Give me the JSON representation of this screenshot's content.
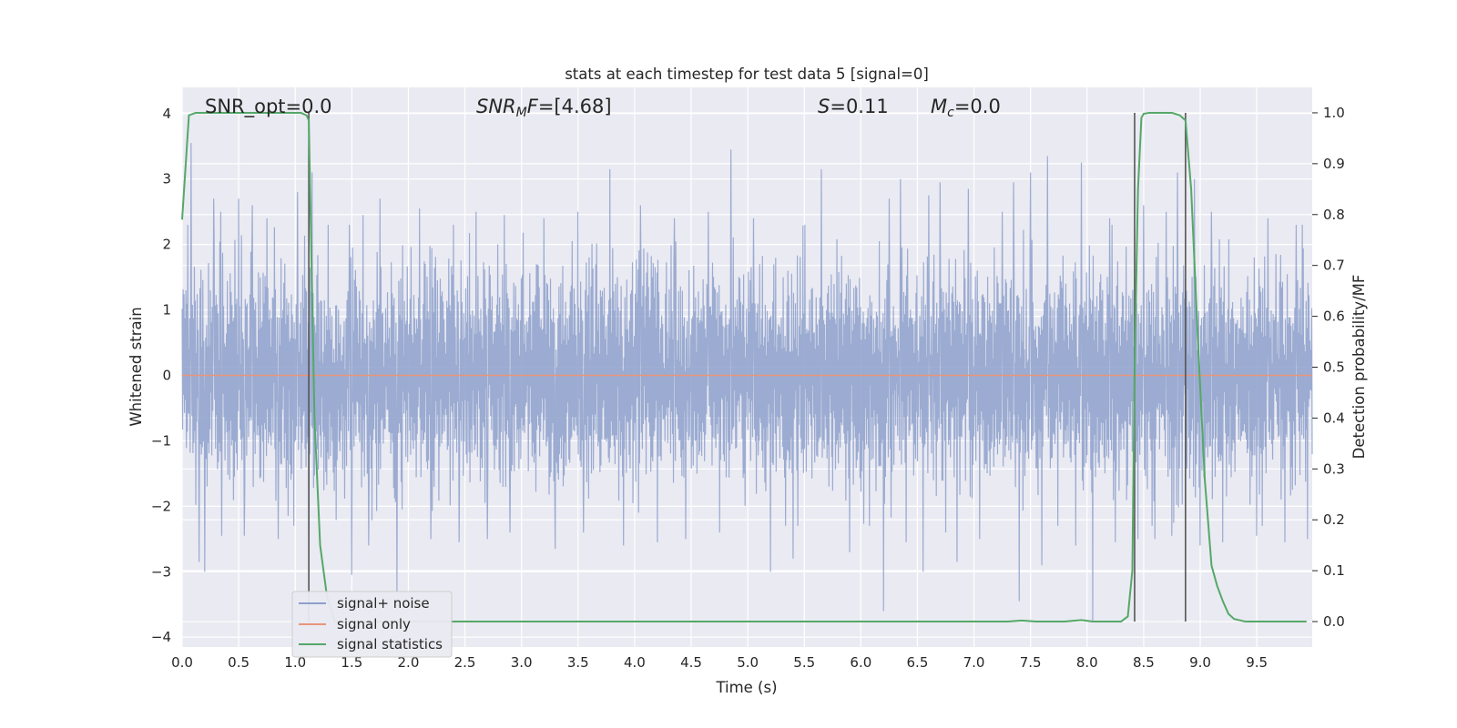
{
  "chart_data": {
    "type": "line",
    "title": "stats at each timestep for test data 5 [signal=0]",
    "xlabel": "Time (s)",
    "ylabel": "Whitened strain",
    "ylabel_right": "Detection probability/MF",
    "xlim": [
      0,
      9.99
    ],
    "ylim": [
      -4.15,
      4.4
    ],
    "ylim_right": [
      -0.05,
      1.05
    ],
    "x_ticks": [
      "0.0",
      "0.5",
      "1.0",
      "1.5",
      "2.0",
      "2.5",
      "3.0",
      "3.5",
      "4.0",
      "4.5",
      "5.0",
      "5.5",
      "6.0",
      "6.5",
      "7.0",
      "7.5",
      "8.0",
      "8.5",
      "9.0",
      "9.5"
    ],
    "y_ticks": [
      "4",
      "3",
      "2",
      "1",
      "0",
      "−1",
      "−2",
      "−3",
      "−4"
    ],
    "y_ticks_right": [
      "1.0",
      "0.9",
      "0.8",
      "0.7",
      "0.6",
      "0.5",
      "0.4",
      "0.3",
      "0.2",
      "0.1",
      "0.0"
    ],
    "grid": true,
    "legend": {
      "placement": "lower-left",
      "entries": [
        {
          "label": "signal+ noise",
          "color": "#8da0cb"
        },
        {
          "label": "signal only",
          "color": "#e8957a"
        },
        {
          "label": "signal statistics",
          "color": "#55a868"
        }
      ]
    },
    "annotations": [
      {
        "text": "SNR_opt=0.0",
        "x": 0.2
      },
      {
        "text_italic": "SNR",
        "sub": "M",
        "text_italic2": "F",
        "text": "=[4.68]",
        "x": 2.6
      },
      {
        "text_italic": "S",
        "text": "=0.11",
        "x": 5.6
      },
      {
        "text_italic": "M",
        "sub": "c",
        "text": "=0.0",
        "x": 6.6
      }
    ],
    "series": [
      {
        "name": "signal+ noise",
        "color": "#8da0cb",
        "envelope_upper_typical": 1.8,
        "envelope_lower_typical": -1.9,
        "peaks": [
          [
            0.05,
            2.3
          ],
          [
            0.08,
            3.55
          ],
          [
            0.28,
            2.7
          ],
          [
            0.34,
            2.5
          ],
          [
            0.5,
            2.7
          ],
          [
            0.55,
            2.5
          ],
          [
            0.62,
            2.6
          ],
          [
            0.75,
            2.4
          ],
          [
            0.85,
            2.75
          ],
          [
            1.02,
            2.8
          ],
          [
            1.15,
            3.1
          ],
          [
            1.48,
            2.3
          ],
          [
            1.6,
            2.45
          ],
          [
            1.75,
            2.7
          ],
          [
            2.1,
            2.55
          ],
          [
            2.4,
            2.3
          ],
          [
            2.6,
            2.5
          ],
          [
            2.85,
            2.45
          ],
          [
            3.2,
            2.4
          ],
          [
            3.5,
            2.5
          ],
          [
            3.55,
            2.75
          ],
          [
            3.78,
            3.15
          ],
          [
            4.05,
            2.6
          ],
          [
            4.35,
            2.4
          ],
          [
            4.65,
            2.5
          ],
          [
            4.75,
            3.6
          ],
          [
            4.85,
            3.45
          ],
          [
            5.05,
            2.4
          ],
          [
            5.4,
            2.45
          ],
          [
            5.65,
            3.15
          ],
          [
            5.9,
            2.4
          ],
          [
            6.25,
            2.7
          ],
          [
            6.35,
            3.0
          ],
          [
            6.6,
            2.75
          ],
          [
            6.7,
            2.95
          ],
          [
            6.95,
            2.85
          ],
          [
            7.25,
            2.5
          ],
          [
            7.35,
            2.95
          ],
          [
            7.5,
            3.1
          ],
          [
            7.65,
            3.35
          ],
          [
            7.95,
            3.25
          ],
          [
            8.2,
            2.4
          ],
          [
            8.5,
            2.6
          ],
          [
            8.7,
            2.5
          ],
          [
            8.8,
            3.1
          ],
          [
            8.95,
            3.0
          ],
          [
            9.1,
            2.5
          ],
          [
            9.2,
            2.5
          ],
          [
            9.5,
            2.5
          ],
          [
            9.6,
            2.4
          ],
          [
            9.75,
            2.5
          ],
          [
            9.85,
            2.3
          ]
        ],
        "troughs": [
          [
            0.15,
            -2.85
          ],
          [
            0.2,
            -2.4
          ],
          [
            0.2,
            -3.0
          ],
          [
            0.35,
            -2.45
          ],
          [
            0.55,
            -2.45
          ],
          [
            0.85,
            -2.5
          ],
          [
            1.12,
            -2.5
          ],
          [
            1.5,
            -3.05
          ],
          [
            1.65,
            -2.6
          ],
          [
            1.9,
            -3.3
          ],
          [
            2.2,
            -2.5
          ],
          [
            2.45,
            -2.55
          ],
          [
            2.7,
            -2.5
          ],
          [
            2.9,
            -2.4
          ],
          [
            3.3,
            -2.65
          ],
          [
            3.55,
            -2.4
          ],
          [
            3.9,
            -2.6
          ],
          [
            4.2,
            -2.55
          ],
          [
            4.45,
            -2.5
          ],
          [
            4.75,
            -2.4
          ],
          [
            5.2,
            -3.0
          ],
          [
            5.4,
            -2.8
          ],
          [
            5.9,
            -2.7
          ],
          [
            6.2,
            -3.6
          ],
          [
            6.4,
            -2.55
          ],
          [
            6.55,
            -3.0
          ],
          [
            6.75,
            -2.4
          ],
          [
            6.85,
            -2.85
          ],
          [
            7.05,
            -2.5
          ],
          [
            7.4,
            -3.45
          ],
          [
            7.6,
            -2.9
          ],
          [
            7.9,
            -2.6
          ],
          [
            8.05,
            -3.75
          ],
          [
            8.25,
            -2.55
          ],
          [
            8.45,
            -2.5
          ],
          [
            8.6,
            -2.5
          ],
          [
            8.75,
            -2.45
          ],
          [
            9.0,
            -2.6
          ],
          [
            9.2,
            -2.55
          ],
          [
            9.5,
            -2.45
          ],
          [
            9.75,
            -2.55
          ],
          [
            9.95,
            -2.5
          ]
        ]
      },
      {
        "name": "signal only",
        "color": "#e8957a",
        "x": [
          0,
          9.99
        ],
        "y": [
          0,
          0
        ]
      },
      {
        "name": "signal statistics",
        "color": "#55a868",
        "axis": "right",
        "x": [
          0,
          0.06,
          0.12,
          0.2,
          0.5,
          1.0,
          1.05,
          1.1,
          1.12,
          1.14,
          1.17,
          1.22,
          1.28,
          1.35,
          2.0,
          3.0,
          4.0,
          5.0,
          6.0,
          7.0,
          7.3,
          7.42,
          7.55,
          7.8,
          7.95,
          8.05,
          8.15,
          8.3,
          8.36,
          8.4,
          8.42,
          8.45,
          8.48,
          8.5,
          8.55,
          8.6,
          8.75,
          8.82,
          8.87,
          8.92,
          8.98,
          9.04,
          9.1,
          9.15,
          9.2,
          9.25,
          9.3,
          9.4,
          9.6,
          9.94
        ],
        "y": [
          0.79,
          0.995,
          1.0,
          1.0,
          1.0,
          1.0,
          1.0,
          0.995,
          0.985,
          0.75,
          0.4,
          0.15,
          0.05,
          0.0,
          0.0,
          0.0,
          0.0,
          0.0,
          0.0,
          0.0,
          0.0,
          0.002,
          0.0,
          0.0,
          0.003,
          0.0,
          0.0,
          0.0,
          0.01,
          0.1,
          0.5,
          0.85,
          0.99,
          0.998,
          1.0,
          1.0,
          1.0,
          0.995,
          0.985,
          0.85,
          0.55,
          0.28,
          0.11,
          0.07,
          0.04,
          0.015,
          0.005,
          0.0,
          0.0,
          0.0
        ]
      }
    ],
    "vertical_markers": [
      1.12,
      8.42,
      8.87
    ],
    "colors": {
      "background": "#eaeaf2",
      "grid": "#ffffff",
      "marker": "#555555"
    }
  }
}
